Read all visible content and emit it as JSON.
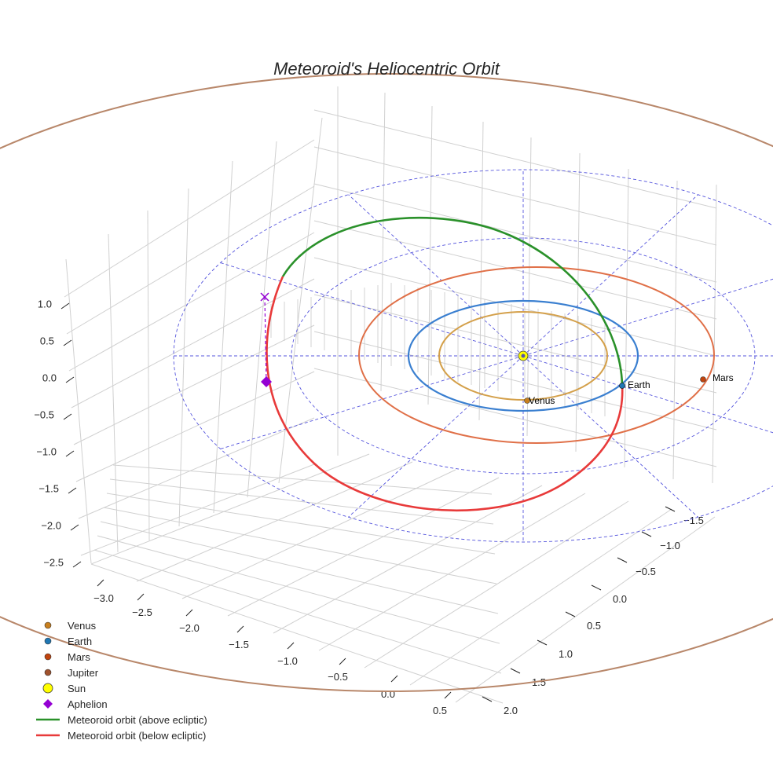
{
  "chart_data": {
    "type": "line3d",
    "title": "Meteoroid's Heliocentric Orbit",
    "axes": {
      "x": {
        "ticks": [
          "−3.0",
          "−2.5",
          "−2.0",
          "−1.5",
          "−1.0",
          "−0.5",
          "0.0",
          "0.5"
        ]
      },
      "y": {
        "ticks": [
          "2.0",
          "1.5",
          "1.0",
          "0.5",
          "0.0",
          "−0.5",
          "−1.0",
          "−1.5"
        ]
      },
      "z": {
        "ticks": [
          "1.0",
          "0.5",
          "0.0",
          "−0.5",
          "−1.0",
          "−1.5",
          "−2.0",
          "−2.5"
        ]
      }
    },
    "grid": true,
    "planets": [
      {
        "name": "Venus",
        "color": "#c87f1e",
        "orbit_color": "#d4a04a",
        "label": "Venus"
      },
      {
        "name": "Earth",
        "color": "#1f77b4",
        "orbit_color": "#3a7fd0",
        "label": "Earth"
      },
      {
        "name": "Mars",
        "color": "#c1440e",
        "orbit_color": "#e07048",
        "label": "Mars"
      },
      {
        "name": "Jupiter",
        "color": "#a0522d",
        "orbit_color": "#b8876a"
      }
    ],
    "sun": {
      "name": "Sun",
      "color": "#ffff00"
    },
    "aphelion": {
      "name": "Aphelion",
      "color": "#9400d3"
    },
    "meteoroid_series": [
      {
        "name": "Meteoroid orbit (above ecliptic)",
        "color": "#2a912a"
      },
      {
        "name": "Meteoroid orbit (below ecliptic)",
        "color": "#e83a3a"
      }
    ],
    "reference_grid_color": "#5555dd",
    "legend_position": "bottom-left"
  },
  "legend": [
    {
      "label": "Venus",
      "kind": "dot",
      "color": "#c87f1e"
    },
    {
      "label": "Earth",
      "kind": "dot",
      "color": "#1f77b4"
    },
    {
      "label": "Mars",
      "kind": "dot",
      "color": "#c1440e"
    },
    {
      "label": "Jupiter",
      "kind": "dot",
      "color": "#a0522d"
    },
    {
      "label": "Sun",
      "kind": "sun",
      "color": "#ffff00"
    },
    {
      "label": "Aphelion",
      "kind": "diamond",
      "color": "#9400d3"
    },
    {
      "label": "Meteoroid orbit (above ecliptic)",
      "kind": "line",
      "color": "#2a912a"
    },
    {
      "label": "Meteoroid orbit (below ecliptic)",
      "kind": "line",
      "color": "#e83a3a"
    }
  ]
}
